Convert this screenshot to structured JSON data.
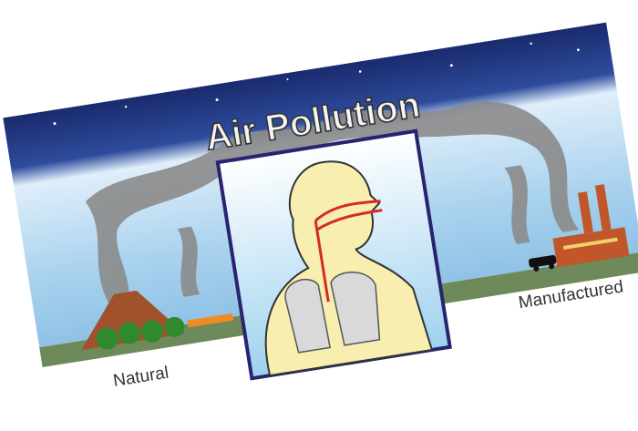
{
  "title": "Air Pollution",
  "labels": {
    "left": "Natural",
    "right": "Manufactured"
  }
}
